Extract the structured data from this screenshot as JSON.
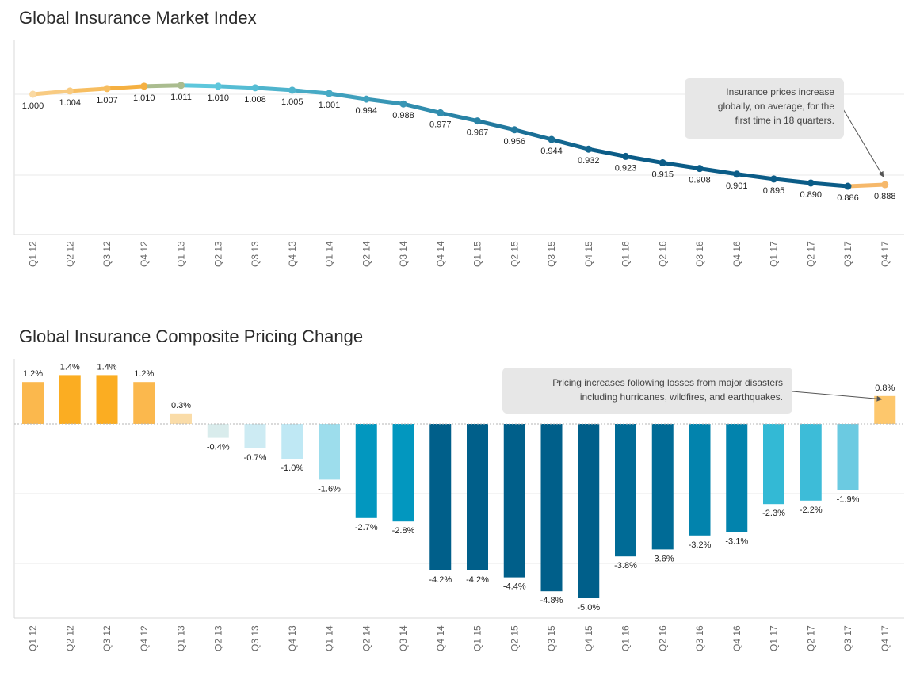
{
  "chart_data": [
    {
      "type": "line",
      "title": "Global Insurance Market Index",
      "categories": [
        "Q1 12",
        "Q2 12",
        "Q3 12",
        "Q4 12",
        "Q1 13",
        "Q2 13",
        "Q3 13",
        "Q4 13",
        "Q1 14",
        "Q2 14",
        "Q3 14",
        "Q4 14",
        "Q1 15",
        "Q2 15",
        "Q3 15",
        "Q4 15",
        "Q1 16",
        "Q2 16",
        "Q3 16",
        "Q4 16",
        "Q1 17",
        "Q2 17",
        "Q3 17",
        "Q4 17"
      ],
      "values": [
        1.0,
        1.004,
        1.007,
        1.01,
        1.011,
        1.01,
        1.008,
        1.005,
        1.001,
        0.994,
        0.988,
        0.977,
        0.967,
        0.956,
        0.944,
        0.932,
        0.923,
        0.915,
        0.908,
        0.901,
        0.895,
        0.89,
        0.886,
        0.888
      ],
      "labels": [
        "1.000",
        "1.004",
        "1.007",
        "1.010",
        "1.011",
        "1.010",
        "1.008",
        "1.005",
        "1.001",
        "0.994",
        "0.988",
        "0.977",
        "0.967",
        "0.956",
        "0.944",
        "0.932",
        "0.923",
        "0.915",
        "0.908",
        "0.901",
        "0.895",
        "0.890",
        "0.886",
        "0.888"
      ],
      "grid": true,
      "annotation": {
        "lines": [
          "Insurance prices increase",
          "globally, on average, for the",
          "first time in 18 quarters."
        ],
        "target_category": "Q4 17"
      },
      "colors": {
        "increase": "#f5b041",
        "decrease": "#0b5c87",
        "transition": "#5ec7dc"
      }
    },
    {
      "type": "bar",
      "title": "Global Insurance Composite Pricing Change",
      "categories": [
        "Q1 12",
        "Q2 12",
        "Q3 12",
        "Q4 12",
        "Q1 13",
        "Q2 13",
        "Q3 13",
        "Q4 13",
        "Q1 14",
        "Q2 14",
        "Q3 14",
        "Q4 14",
        "Q1 15",
        "Q2 15",
        "Q3 15",
        "Q4 15",
        "Q1 16",
        "Q2 16",
        "Q3 16",
        "Q4 16",
        "Q1 17",
        "Q2 17",
        "Q3 17",
        "Q4 17"
      ],
      "values": [
        1.2,
        1.4,
        1.4,
        1.2,
        0.3,
        -0.4,
        -0.7,
        -1.0,
        -1.6,
        -2.7,
        -2.8,
        -4.2,
        -4.2,
        -4.4,
        -4.8,
        -5.0,
        -3.8,
        -3.6,
        -3.2,
        -3.1,
        -2.3,
        -2.2,
        -1.9,
        0.8
      ],
      "labels": [
        "1.2%",
        "1.4%",
        "1.4%",
        "1.2%",
        "0.3%",
        "-0.4%",
        "-0.7%",
        "-1.0%",
        "-1.6%",
        "-2.7%",
        "-2.8%",
        "-4.2%",
        "-4.2%",
        "-4.4%",
        "-4.8%",
        "-5.0%",
        "-3.8%",
        "-3.6%",
        "-3.2%",
        "-3.1%",
        "-2.3%",
        "-2.2%",
        "-1.9%",
        "0.8%"
      ],
      "colors": [
        "#fbb84d",
        "#fbad22",
        "#fbad22",
        "#fbb84d",
        "#fadca8",
        "#d9ecec",
        "#cdebf3",
        "#bfe8f4",
        "#9dddec",
        "#0297bf",
        "#0297bf",
        "#005f8a",
        "#005f8a",
        "#005f8a",
        "#005f8a",
        "#005f8a",
        "#006b96",
        "#006b96",
        "#0283ad",
        "#0283ad",
        "#33b9d5",
        "#3dbcd8",
        "#6bcae1",
        "#fdc76c"
      ],
      "grid": true,
      "annotation": {
        "lines": [
          "Pricing increases following losses from major disasters",
          "including hurricanes, wildfires, and earthquakes."
        ],
        "target_category": "Q4 17"
      }
    }
  ]
}
